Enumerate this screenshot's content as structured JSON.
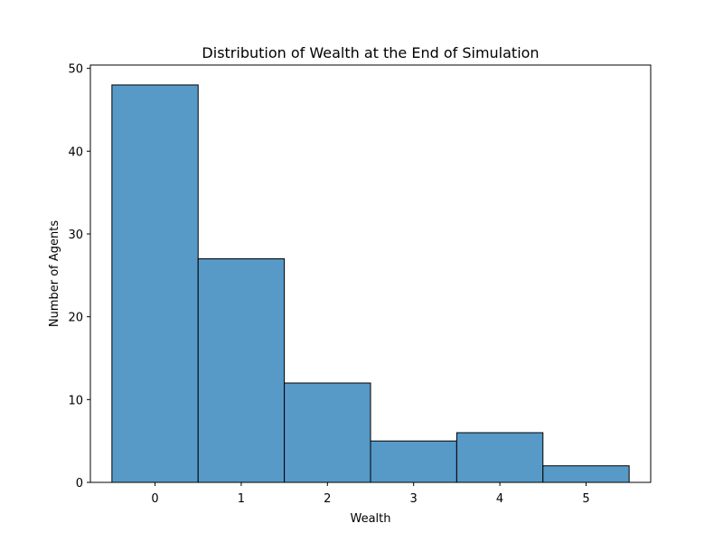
{
  "chart_data": {
    "type": "bar",
    "title": "Distribution of Wealth at the End of Simulation",
    "xlabel": "Wealth",
    "ylabel": "Number of Agents",
    "categories": [
      "0",
      "1",
      "2",
      "3",
      "4",
      "5"
    ],
    "x": [
      0,
      1,
      2,
      3,
      4,
      5
    ],
    "values": [
      48,
      27,
      12,
      5,
      6,
      2
    ],
    "xlim": [
      -0.75,
      5.75
    ],
    "ylim": [
      0,
      50.4
    ],
    "yticks": [
      0,
      10,
      20,
      30,
      40,
      50
    ],
    "grid": false,
    "legend": "none",
    "bar_color": "#5799c7",
    "edge_color": "#000000"
  }
}
